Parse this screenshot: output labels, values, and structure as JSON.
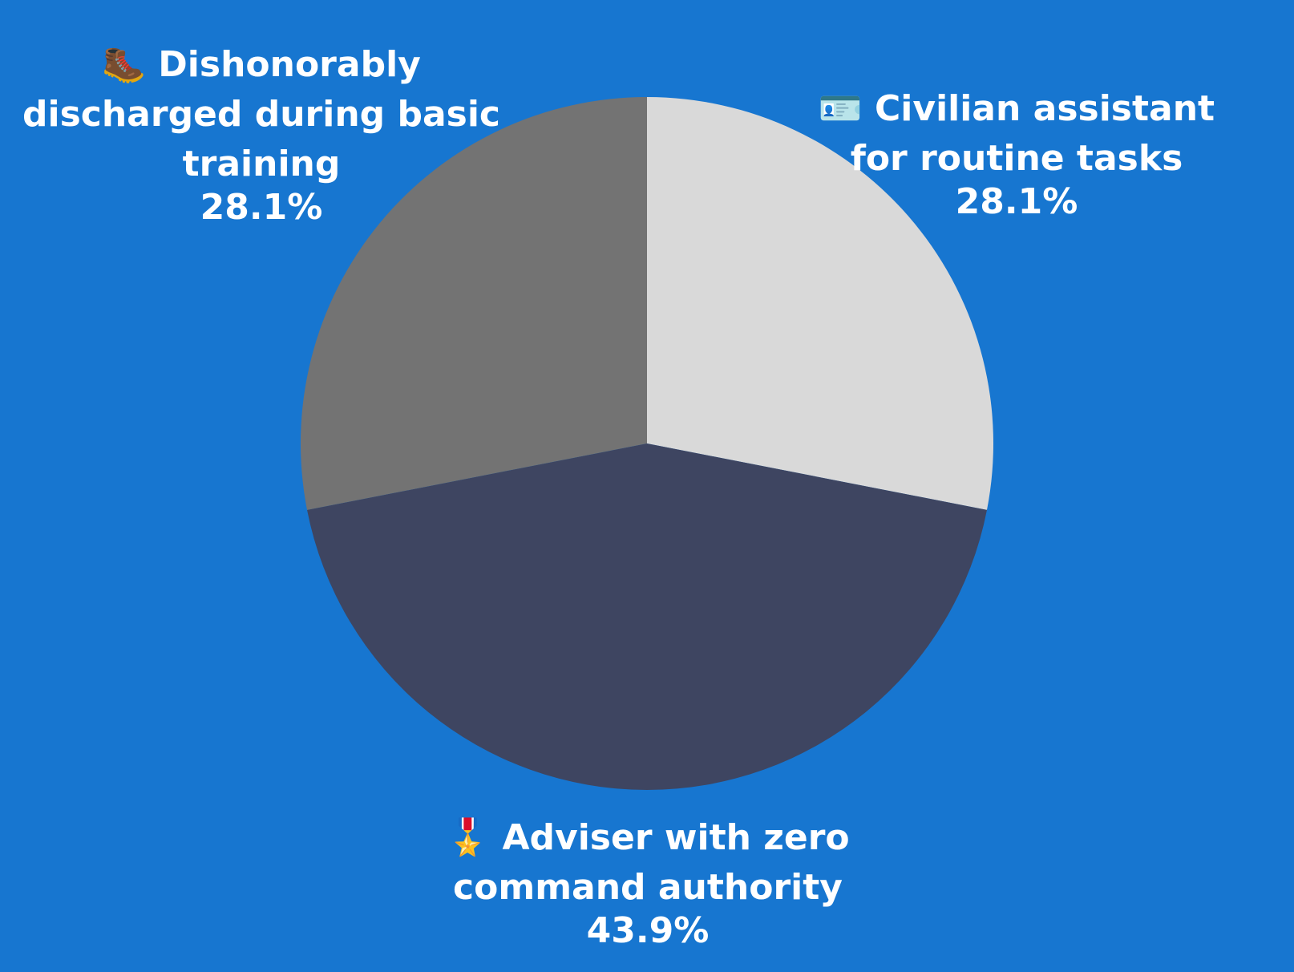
{
  "chart_data": {
    "type": "pie",
    "title": "",
    "background_color": "#1776d0",
    "start_angle_deg": 0,
    "direction": "clockwise",
    "slices": [
      {
        "label": "🪪 Civilian assistant for routine tasks",
        "label_lines": [
          "🪪 Civilian assistant",
          "for routine tasks"
        ],
        "value": 28.1,
        "value_text": "28.1%",
        "color": "#d9d9d9",
        "label_position": "top-right",
        "icon": "id-card-icon"
      },
      {
        "label": "🎖️ Adviser with zero command authority",
        "label_lines": [
          "🎖️ Adviser with zero",
          "command authority"
        ],
        "value": 43.9,
        "value_text": "43.9%",
        "color": "#3e4561",
        "label_position": "bottom",
        "icon": "military-medal-icon"
      },
      {
        "label": "🥾 Dishonorably discharged during basic training",
        "label_lines": [
          "🥾 Dishonorably",
          "discharged during basic",
          "training"
        ],
        "value": 28.1,
        "value_text": "28.1%",
        "color": "#737373",
        "label_position": "top-left",
        "icon": "hiking-boot-icon"
      }
    ]
  }
}
